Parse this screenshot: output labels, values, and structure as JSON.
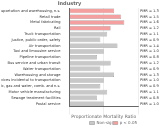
{
  "chart_data": {
    "type": "bar",
    "orientation": "horizontal",
    "stacked": true,
    "title": "Industry",
    "x_label": "Proportionate Mortality Ratio",
    "categories": [
      "Transportation and warehousing, n.s.",
      "Retail trade",
      "Metal fabricating",
      "Rail",
      "Truck transportation",
      "Justice, public order, safety",
      "Air transportation",
      "Taxi and limousine service",
      "Pipeline transportation",
      "Bus service and urban transit",
      "Water transportation",
      "Warehousing and storage",
      "Services incidental to transportation",
      "Electric, gas and water, comb. and n.s.",
      "Motor vehicle manufacturing",
      "Sewage treatment facilities",
      "Postal service"
    ],
    "series": [
      {
        "name": "Non-sig",
        "color": "#c8c8c8",
        "values": [
          null,
          null,
          null,
          null,
          1.1,
          0.9,
          1.4,
          1.0,
          0.8,
          1.2,
          0.9,
          1.3,
          1.0,
          0.9,
          1.1,
          0.8,
          1.0
        ],
        "value_labels": [
          null,
          null,
          null,
          null,
          "PMR = 1.1",
          "PMR = 0.9",
          "PMR = 1.4",
          "PMR = 1.0",
          "PMR = 0.8",
          "PMR = 1.2",
          "PMR = 0.9",
          "PMR = 1.3",
          "PMR = 1.0",
          "PMR = 0.9",
          "PMR = 1.1",
          "PMR = 0.8",
          "PMR = 1.0"
        ]
      },
      {
        "name": "p < 0.05",
        "color": "#f4a0a0",
        "values": [
          1.3,
          1.5,
          1.6,
          1.2,
          null,
          null,
          null,
          null,
          null,
          null,
          null,
          null,
          null,
          null,
          null,
          null,
          null
        ],
        "value_labels": [
          "PMR = 1.3",
          "PMR = 1.5",
          "PMR = 1.6",
          "PMR = 1.2",
          null,
          null,
          null,
          null,
          null,
          null,
          null,
          null,
          null,
          null,
          null,
          null,
          null
        ]
      }
    ],
    "xlim": [
      0,
      2
    ],
    "xticks": [
      0,
      1,
      2
    ],
    "grid": true,
    "tick_labels": "y",
    "data_labels": true,
    "legend": "bottom"
  }
}
